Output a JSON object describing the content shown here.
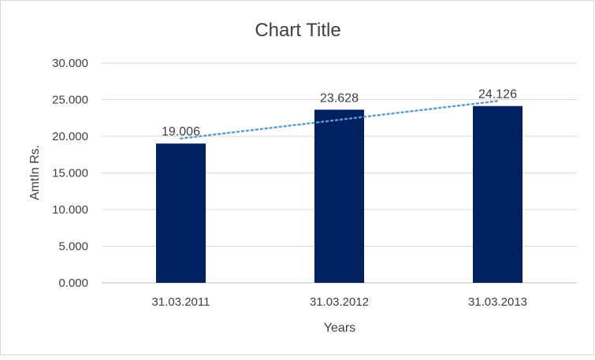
{
  "chart_data": {
    "type": "bar",
    "title": "Chart Title",
    "xlabel": "Years",
    "ylabel": "AmtIn Rs.",
    "categories": [
      "31.03.2011",
      "31.03.2012",
      "31.03.2013"
    ],
    "values": [
      19.006,
      23.628,
      24.126
    ],
    "data_labels": [
      "19.006",
      "23.628",
      "24.126"
    ],
    "ylim": [
      0,
      30
    ],
    "yticks": [
      "0.000",
      "5.000",
      "10.000",
      "15.000",
      "20.000",
      "25.000",
      "30.000"
    ],
    "grid": true,
    "legend": "none",
    "trendline": "linear",
    "colors": {
      "bar": "#002060",
      "trendline": "#5b9bd5",
      "grid": "#d9d9d9",
      "text": "#404040"
    }
  }
}
